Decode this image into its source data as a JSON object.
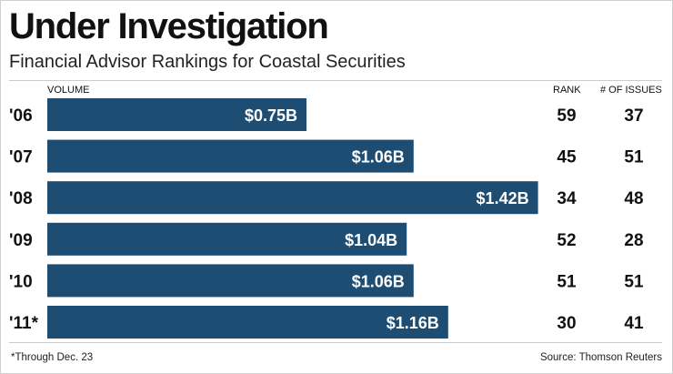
{
  "header": {
    "title": "Under Investigation",
    "subtitle": "Financial Advisor Rankings for Coastal Securities"
  },
  "columns": {
    "volume": "VOLUME",
    "rank": "RANK",
    "issues": "# OF ISSUES"
  },
  "chart_data": {
    "type": "bar",
    "orientation": "horizontal",
    "title": "Under Investigation",
    "subtitle": "Financial Advisor Rankings for Coastal Securities",
    "xlabel": "VOLUME",
    "ylabel": "",
    "xlim": [
      0,
      1.5
    ],
    "grid": false,
    "unit": "billions USD",
    "categories": [
      "'06",
      "'07",
      "'08",
      "'09",
      "'10",
      "'11*"
    ],
    "values": [
      0.75,
      1.06,
      1.42,
      1.04,
      1.06,
      1.16
    ],
    "value_labels": [
      "$0.75B",
      "$1.06B",
      "$1.42B",
      "$1.04B",
      "$1.06B",
      "$1.16B"
    ],
    "rank": [
      59,
      45,
      34,
      52,
      51,
      30
    ],
    "issues": [
      37,
      51,
      48,
      28,
      51,
      41
    ],
    "bar_color": "#1e4d73",
    "label_color": "#ffffff"
  },
  "footer": {
    "note": "*Through Dec. 23",
    "source": "Source: Thomson Reuters"
  }
}
